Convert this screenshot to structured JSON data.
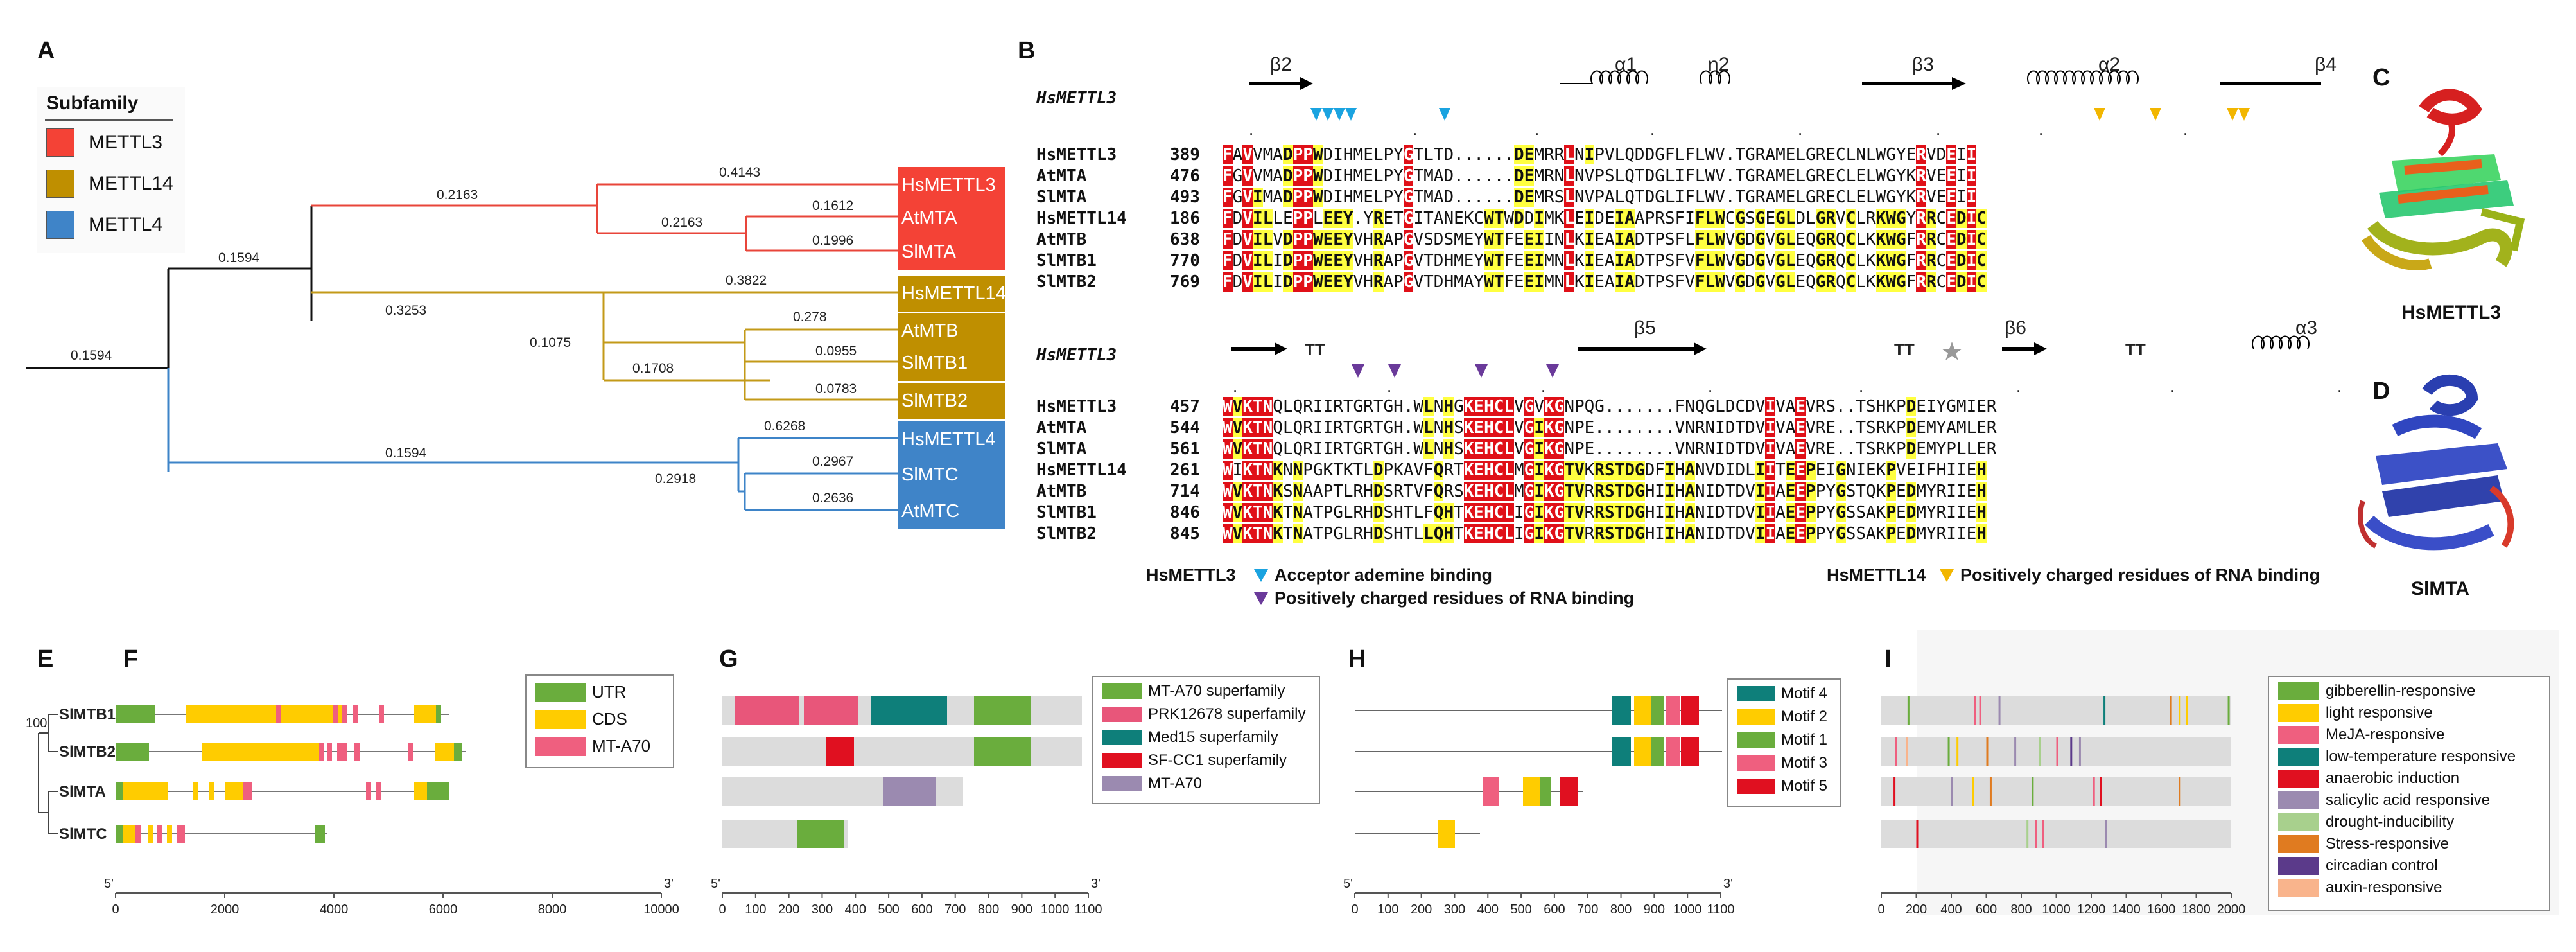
{
  "panels": {
    "A": "A",
    "B": "B",
    "C": "C",
    "D": "D",
    "E": "E",
    "F": "F",
    "G": "G",
    "H": "H",
    "I": "I"
  },
  "panelA": {
    "legend_title": "Subfamily",
    "legend": [
      {
        "label": "METTL3",
        "color": "#f44236"
      },
      {
        "label": "METTL14",
        "color": "#bf8f00"
      },
      {
        "label": "METTL4",
        "color": "#3f84c8"
      }
    ],
    "leaves": [
      {
        "label": "HsMETTL3",
        "color": "#f44236"
      },
      {
        "label": "AtMTA",
        "color": "#f44236"
      },
      {
        "label": "SlMTA",
        "color": "#f44236"
      },
      {
        "label": "HsMETTL14",
        "color": "#bf8f00"
      },
      {
        "label": "AtMTB",
        "color": "#bf8f00"
      },
      {
        "label": "SlMTB1",
        "color": "#bf8f00"
      },
      {
        "label": "SlMTB2",
        "color": "#bf8f00"
      },
      {
        "label": "HsMETTL4",
        "color": "#3f84c8"
      },
      {
        "label": "SlMTC",
        "color": "#3f84c8"
      },
      {
        "label": "AtMTC",
        "color": "#3f84c8"
      }
    ],
    "branch_labels": [
      "0.1594",
      "0.1594",
      "0.2163",
      "0.4143",
      "0.2163",
      "0.1612",
      "0.1996",
      "0.3253",
      "0.3822",
      "0.1075",
      "0.278",
      "0.1708",
      "0.0955",
      "0.0783",
      "0.1594",
      "0.6268",
      "0.2918",
      "0.2967",
      "0.2636"
    ]
  },
  "panelB": {
    "ref1": "HsMETTL3",
    "ref2": "HsMETTL3",
    "ss_top": [
      "β2",
      "α1",
      "η2",
      "β3",
      "α2",
      "β4"
    ],
    "ss_bottom": [
      "TT",
      "β5",
      "TT",
      "β6",
      "TT",
      "α3"
    ],
    "block1": [
      {
        "name": "HsMETTL3",
        "num": "389",
        "seq": "FAVVMADPPWDIHMELPYGTLTD......DEMRRLNIPVLQDDGFLFLWV.TGRAMELGRECLNLWGYERVDEII"
      },
      {
        "name": "AtMTA",
        "num": "476",
        "seq": "FGVVMADPPWDIHMELPYGTMAD......DEMRNLNVPSLQTDGLIFLWV.TGRAMELGRECLELWGYKRVEEII"
      },
      {
        "name": "SlMTA",
        "num": "493",
        "seq": "FGVIMADPPWDIHMELPYGTMAD......DEMRSLNVPALQTDGLIFLWV.TGRAMELGRECLELWGYKRVEEII"
      },
      {
        "name": "HsMETTL14",
        "num": "186",
        "seq": "FDVILLEPPLEEY.YRETGITANEKCWTWDDIMKLEIDEIAAPRSFIFLWCGSGEGLDLGRVCLRKWGYRRCEDIC"
      },
      {
        "name": "AtMTB",
        "num": "638",
        "seq": "FDVILVDPPWEEYVHRAPGVSDSMEYWTFEEIINLKIEAIADTPSFLFLWVGDGVGLEQGRQCLKKWGFRRCEDIC"
      },
      {
        "name": "SlMTB1",
        "num": "770",
        "seq": "FDVILIDPPWEEYVHRAPGVTDHMEYWTFEEIMNLKIEAIADTPSFVFLWVGDGVGLEQGRQCLKKWGFRRCEDIC"
      },
      {
        "name": "SlMTB2",
        "num": "769",
        "seq": "FDVILIDPPWEEYVHRAPGVTDHMAYWTFEEIMNLKIEAIADTPSFVFLWVGDGVGLEQGRQCLKKWGFRRCEDIC"
      }
    ],
    "block2": [
      {
        "name": "HsMETTL3",
        "num": "457",
        "seq": "WVKTNQLQRIIRTGRTGH.WLNHGKEHCLVGVKGNPQG.......FNQGLDCDVIVAEVRS..TSHKPDEIYGMIER"
      },
      {
        "name": "AtMTA",
        "num": "544",
        "seq": "WVKTNQLQRIIRTGRTGH.WLNHSKEHCLVGIKGNPE........VNRNIDTDVIVAEVRE..TSRKPDEMYAMLER"
      },
      {
        "name": "SlMTA",
        "num": "561",
        "seq": "WVKTNQLQRIIRTGRTGH.WLNHSKEHCLVGIKGNPE........VNRNIDTDVIVAEVRE..TSRKPDEMYPLLER"
      },
      {
        "name": "HsMETTL14",
        "num": "261",
        "seq": "WIKTNKNNPGKTKTLDPKAVFQRTKEHCLMGIKGTVKRSTDGDFIHANVDIDLIITEEPEIGNIEKPVEIFHIIEH"
      },
      {
        "name": "AtMTB",
        "num": "714",
        "seq": "WVKTNKSNAAPTLRHDSRTVFQRSKEHCLMGIKGTVRRSTDGHIIHANIDTDVIIAEEPPYGSTQKPEDMYRIIEH"
      },
      {
        "name": "SlMTB1",
        "num": "846",
        "seq": "WVKTNKTNATPGLRHDSHTLFQHTKEHCLIGIKGTVRRSTDGHIIHANIDTDVIIAEEPPYGSSAKPEDMYRIIEH"
      },
      {
        "name": "SlMTB2",
        "num": "845",
        "seq": "WVKTNKTNATPGLRHDSHTLLQHTKEHCLIGIKGTVRRSTDGHIIHANIDTDVIIAEEPPYGSSAKPEDMYRIIEH"
      }
    ],
    "legend_hs3": "HsMETTL3",
    "legend_acceptor": "Acceptor ademine binding",
    "legend_pos_rna": "Positively charged residues of RNA binding",
    "legend_hs14": "HsMETTL14",
    "legend_pos_rna14": "Positively charged residues of RNA binding"
  },
  "panelC": {
    "label": "HsMETTL3"
  },
  "panelD": {
    "label": "SlMTA"
  },
  "panelE": {
    "bootstrap": "100",
    "genes": [
      "SlMTB1",
      "SlMTB2",
      "SlMTA",
      "SlMTC"
    ]
  },
  "panelF": {
    "legend": [
      {
        "label": "UTR",
        "color": "#6aad3d"
      },
      {
        "label": "CDS",
        "color": "#ffcc00"
      },
      {
        "label": "MT-A70",
        "color": "#ef5f7f"
      }
    ],
    "axis_ticks": [
      "0",
      "2000",
      "4000",
      "6000",
      "8000",
      "10000"
    ],
    "axis_start": "5'",
    "axis_end": "3'"
  },
  "panelG": {
    "legend": [
      {
        "label": "MT-A70 superfamily",
        "color": "#6aad3d"
      },
      {
        "label": "PRK12678 superfamily",
        "color": "#e8567a"
      },
      {
        "label": "Med15 superfamily",
        "color": "#0e7f7a"
      },
      {
        "label": "SF-CC1 superfamily",
        "color": "#e01020"
      },
      {
        "label": "MT-A70",
        "color": "#9b8ab0"
      }
    ],
    "axis_ticks": [
      "0",
      "100",
      "200",
      "300",
      "400",
      "500",
      "600",
      "700",
      "800",
      "900",
      "1000",
      "1100"
    ],
    "axis_start": "5'",
    "axis_end": "3'"
  },
  "panelH": {
    "legend": [
      {
        "label": "Motif 4",
        "color": "#0e7f7a"
      },
      {
        "label": "Motif 2",
        "color": "#ffcc00"
      },
      {
        "label": "Motif 1",
        "color": "#6aad3d"
      },
      {
        "label": "Motif 3",
        "color": "#ef5f7f"
      },
      {
        "label": "Motif 5",
        "color": "#e01020"
      }
    ],
    "axis_ticks": [
      "0",
      "100",
      "200",
      "300",
      "400",
      "500",
      "600",
      "700",
      "800",
      "900",
      "1000",
      "1100"
    ],
    "axis_start": "5'",
    "axis_end": "3'"
  },
  "panelI": {
    "legend": [
      {
        "label": "gibberellin-responsive",
        "color": "#6aad3d"
      },
      {
        "label": "light responsive",
        "color": "#ffcc00"
      },
      {
        "label": "MeJA-responsive",
        "color": "#ef5f7f"
      },
      {
        "label": "low-temperature responsive",
        "color": "#0e7f7a"
      },
      {
        "label": "anaerobic induction",
        "color": "#e01020"
      },
      {
        "label": "salicylic acid responsive",
        "color": "#9b8ab0"
      },
      {
        "label": "drought-inducibility",
        "color": "#a8d08d"
      },
      {
        "label": "Stress-responsive",
        "color": "#e07b20"
      },
      {
        "label": "circadian control",
        "color": "#5b3a8a"
      },
      {
        "label": "auxin-responsive",
        "color": "#f9b48c"
      }
    ],
    "axis_ticks": [
      "0",
      "200",
      "400",
      "600",
      "800",
      "1000",
      "1200",
      "1400",
      "1600",
      "1800",
      "2000"
    ]
  }
}
